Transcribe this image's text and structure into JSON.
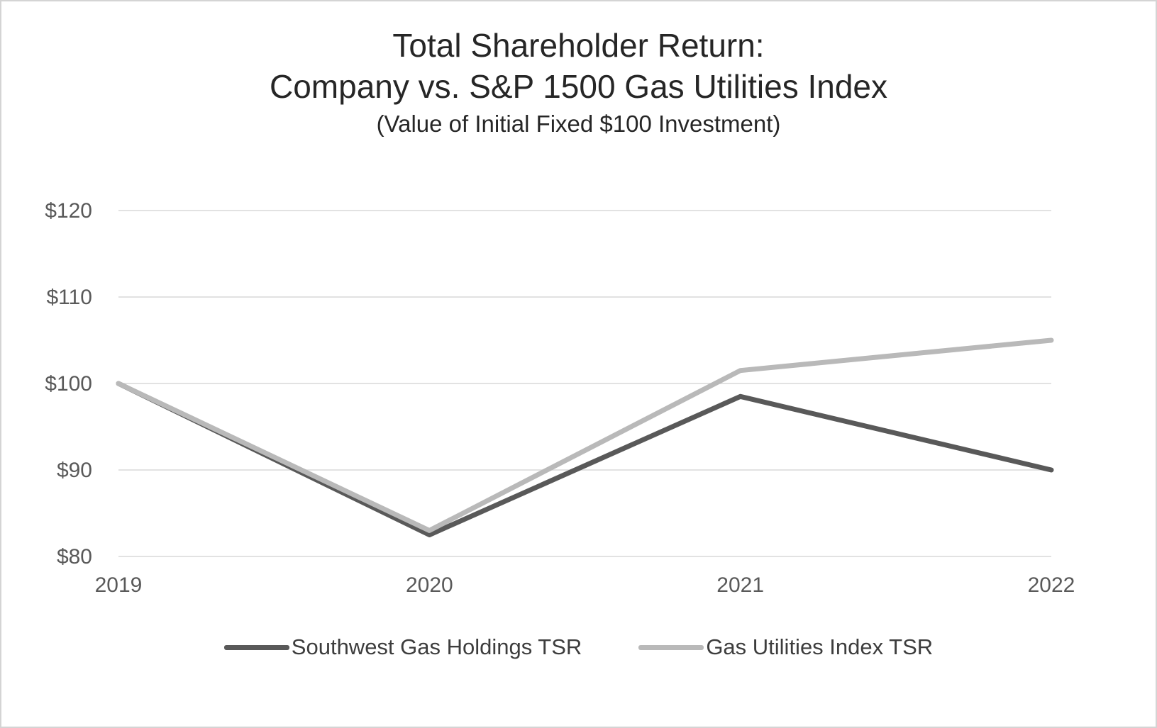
{
  "header": {
    "title_line1": "Total Shareholder Return:",
    "title_line2": "Company vs. S&P 1500 Gas Utilities Index",
    "subtitle": "(Value of Initial Fixed $100 Investment)"
  },
  "chart_data": {
    "type": "line",
    "title": "Total Shareholder Return: Company vs. S&P 1500 Gas Utilities Index",
    "subtitle": "(Value of Initial Fixed $100 Investment)",
    "x": [
      "2019",
      "2020",
      "2021",
      "2022"
    ],
    "series": [
      {
        "name": "Southwest Gas Holdings TSR",
        "values": [
          100,
          82.5,
          98.5,
          90
        ],
        "color": "#595959"
      },
      {
        "name": "Gas Utilities Index TSR",
        "values": [
          100,
          83,
          101.5,
          105
        ],
        "color": "#b9b9b9"
      }
    ],
    "xlabel": "",
    "ylabel": "",
    "ylim": [
      80,
      120
    ],
    "ytick_step": 10,
    "ytick_prefix": "$",
    "grid": true,
    "grid_color": "#d9d9d9",
    "tick_label_color": "#595959",
    "legend_position": "bottom"
  }
}
